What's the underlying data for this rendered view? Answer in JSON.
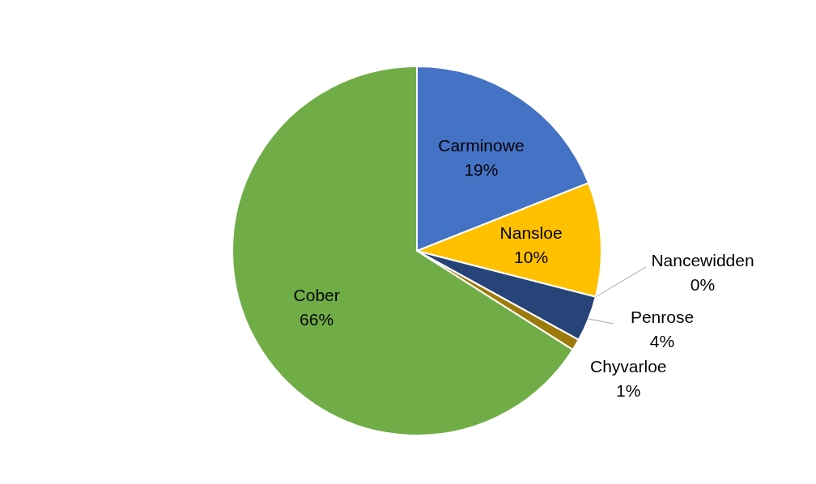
{
  "chart_data": {
    "type": "pie",
    "categories": [
      "Carminowe",
      "Nansloe",
      "Nancewidden",
      "Penrose",
      "Chyvarloe",
      "Cober"
    ],
    "values": [
      19,
      10,
      0,
      4,
      1,
      66
    ],
    "value_labels": [
      "19%",
      "10%",
      "0%",
      "4%",
      "1%",
      "66%"
    ],
    "colors": [
      "#4472c4",
      "#ffc000",
      "#a5a5a5",
      "#264478",
      "#9e7a0b",
      "#70ad47"
    ]
  }
}
